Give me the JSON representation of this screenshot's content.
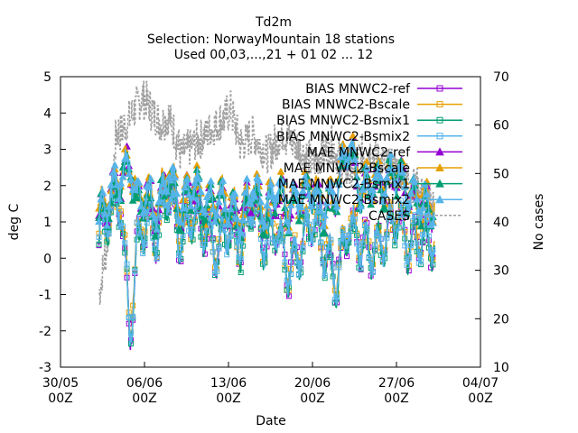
{
  "chart_data": {
    "type": "line",
    "title": "Td2m",
    "subtitle1": "Selection: NorwayMountain     18 stations",
    "subtitle2": "Used 00,03,...,21 + 01 02 ... 12",
    "xlabel": "Date",
    "ylabel": "deg C",
    "y2label": "No cases",
    "ylim": [
      -3,
      5
    ],
    "y2lim": [
      10,
      70
    ],
    "yticks": [
      "-3",
      "-2",
      "-1",
      "0",
      "1",
      "2",
      "3",
      "4",
      "5"
    ],
    "y2ticks": [
      "10",
      "20",
      "30",
      "40",
      "50",
      "60",
      "70"
    ],
    "xticks": [
      {
        "date": "30/05",
        "hour": "00Z"
      },
      {
        "date": "06/06",
        "hour": "00Z"
      },
      {
        "date": "13/06",
        "hour": "00Z"
      },
      {
        "date": "20/06",
        "hour": "00Z"
      },
      {
        "date": "27/06",
        "hour": "00Z"
      },
      {
        "date": "04/07",
        "hour": "00Z"
      }
    ],
    "legend_position": "top-right",
    "series": [
      {
        "name": "BIAS MNWC2-ref",
        "color": "#9400d3",
        "marker": "square",
        "axis": "y"
      },
      {
        "name": "BIAS MNWC2-Bscale",
        "color": "#e69f00",
        "marker": "square",
        "axis": "y"
      },
      {
        "name": "BIAS MNWC2-Bsmix1",
        "color": "#009e73",
        "marker": "square",
        "axis": "y"
      },
      {
        "name": "BIAS MNWC2-Bsmix2",
        "color": "#56b4e9",
        "marker": "square",
        "axis": "y"
      },
      {
        "name": "MAE MNWC2-ref",
        "color": "#9400d3",
        "marker": "triangle",
        "axis": "y"
      },
      {
        "name": "MAE MNWC2-Bscale",
        "color": "#e69f00",
        "marker": "triangle",
        "axis": "y"
      },
      {
        "name": "MAE MNWC2-Bsmix1",
        "color": "#009e73",
        "marker": "triangle",
        "axis": "y"
      },
      {
        "name": "MAE MNWC2-Bsmix2",
        "color": "#56b4e9",
        "marker": "triangle",
        "axis": "y"
      },
      {
        "name": "CASES",
        "color": "#a0a0a0",
        "marker": "none",
        "axis": "y2",
        "dashed": true
      }
    ],
    "x_range_days": [
      0,
      35
    ],
    "data_x_range_days": [
      3.2,
      31.2
    ],
    "cases_profile": [
      [
        3.2,
        25
      ],
      [
        4.0,
        38
      ],
      [
        4.6,
        58
      ],
      [
        5.5,
        60
      ],
      [
        6.8,
        66
      ],
      [
        8.4,
        60
      ],
      [
        9.0,
        62
      ],
      [
        10.0,
        54
      ],
      [
        11.0,
        56
      ],
      [
        13.0,
        60
      ],
      [
        14.2,
        63
      ],
      [
        15.0,
        56
      ],
      [
        16.0,
        58
      ],
      [
        17.2,
        54
      ],
      [
        18.5,
        58
      ],
      [
        20.0,
        55
      ],
      [
        21.0,
        52
      ],
      [
        22.5,
        56
      ],
      [
        24.0,
        50
      ],
      [
        25.5,
        55
      ],
      [
        27.0,
        52
      ],
      [
        28.5,
        50
      ],
      [
        30.0,
        46
      ],
      [
        31.2,
        43
      ]
    ],
    "bias_envelope": [
      [
        3.2,
        0.5
      ],
      [
        4.0,
        1.2
      ],
      [
        5.0,
        1.6
      ],
      [
        5.8,
        -2.1
      ],
      [
        6.4,
        0.4
      ],
      [
        7.2,
        1.1
      ],
      [
        8.0,
        0.6
      ],
      [
        9.0,
        1.9
      ],
      [
        10.0,
        0.5
      ],
      [
        11.0,
        1.2
      ],
      [
        12.0,
        0.8
      ],
      [
        13.0,
        0.2
      ],
      [
        14.0,
        0.9
      ],
      [
        15.0,
        0.3
      ],
      [
        16.0,
        1.6
      ],
      [
        17.0,
        0.4
      ],
      [
        18.0,
        0.9
      ],
      [
        19.0,
        -0.4
      ],
      [
        20.0,
        0.3
      ],
      [
        21.0,
        1.1
      ],
      [
        22.0,
        0.2
      ],
      [
        23.0,
        -0.6
      ],
      [
        24.0,
        0.9
      ],
      [
        25.0,
        0.4
      ],
      [
        26.0,
        0.2
      ],
      [
        27.0,
        0.5
      ],
      [
        28.0,
        1.2
      ],
      [
        29.0,
        0.3
      ],
      [
        30.0,
        0.6
      ],
      [
        31.2,
        0.4
      ]
    ],
    "mae_envelope": [
      [
        3.2,
        1.1
      ],
      [
        4.0,
        1.6
      ],
      [
        5.0,
        2.2
      ],
      [
        5.8,
        2.6
      ],
      [
        6.4,
        1.5
      ],
      [
        7.2,
        1.8
      ],
      [
        8.0,
        1.2
      ],
      [
        9.0,
        2.4
      ],
      [
        10.0,
        1.3
      ],
      [
        11.0,
        2.1
      ],
      [
        12.0,
        1.4
      ],
      [
        13.0,
        1.6
      ],
      [
        14.0,
        1.5
      ],
      [
        15.0,
        1.0
      ],
      [
        16.0,
        2.0
      ],
      [
        17.0,
        1.2
      ],
      [
        18.0,
        1.9
      ],
      [
        19.0,
        1.3
      ],
      [
        20.0,
        1.7
      ],
      [
        21.0,
        1.9
      ],
      [
        22.0,
        1.3
      ],
      [
        23.0,
        1.8
      ],
      [
        24.0,
        3.2
      ],
      [
        25.0,
        1.8
      ],
      [
        26.0,
        2.1
      ],
      [
        27.0,
        2.0
      ],
      [
        28.0,
        2.4
      ],
      [
        29.0,
        1.7
      ],
      [
        30.0,
        1.5
      ],
      [
        31.2,
        1.3
      ]
    ]
  }
}
